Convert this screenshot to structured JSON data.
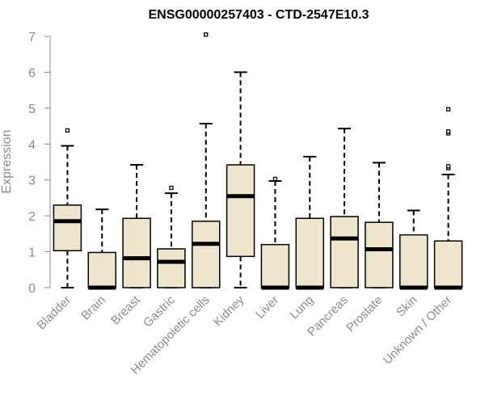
{
  "chart_data": {
    "type": "boxplot",
    "title": "ENSG00000257403 - CTD-2547E10.3",
    "xlabel": "",
    "ylabel": "Expression",
    "ylim": [
      0,
      7
    ],
    "yticks": [
      0,
      1,
      2,
      3,
      4,
      5,
      6,
      7
    ],
    "grid": false,
    "box_fill": "#ede6cd",
    "median_color": "#000000",
    "axis_color": "#8c8c8c",
    "categories": [
      "Bladder",
      "Brain",
      "Breast",
      "Gastric",
      "Hematopoietic cells",
      "Kidney",
      "Liver",
      "Lung",
      "Pancreas",
      "Prostate",
      "Skin",
      "Unknown / Other"
    ],
    "boxes": [
      {
        "category": "Bladder",
        "whisker_low": 0.0,
        "q1": 1.03,
        "median": 1.85,
        "q3": 2.3,
        "whisker_high": 3.95,
        "outliers": [
          4.38
        ]
      },
      {
        "category": "Brain",
        "whisker_low": 0.0,
        "q1": 0.0,
        "median": 0.0,
        "q3": 0.98,
        "whisker_high": 2.18,
        "outliers": []
      },
      {
        "category": "Breast",
        "whisker_low": 0.0,
        "q1": 0.0,
        "median": 0.82,
        "q3": 1.93,
        "whisker_high": 3.42,
        "outliers": []
      },
      {
        "category": "Gastric",
        "whisker_low": 0.0,
        "q1": 0.0,
        "median": 0.72,
        "q3": 1.08,
        "whisker_high": 2.63,
        "outliers": [
          2.78
        ]
      },
      {
        "category": "Hematopoietic cells",
        "whisker_low": 0.0,
        "q1": 0.0,
        "median": 1.22,
        "q3": 1.85,
        "whisker_high": 4.57,
        "outliers": [
          7.05
        ]
      },
      {
        "category": "Kidney",
        "whisker_low": 0.0,
        "q1": 0.87,
        "median": 2.55,
        "q3": 3.42,
        "whisker_high": 6.0,
        "outliers": []
      },
      {
        "category": "Liver",
        "whisker_low": 0.0,
        "q1": 0.0,
        "median": 0.0,
        "q3": 1.2,
        "whisker_high": 2.97,
        "outliers": [
          3.03
        ]
      },
      {
        "category": "Lung",
        "whisker_low": 0.0,
        "q1": 0.0,
        "median": 0.0,
        "q3": 1.93,
        "whisker_high": 3.65,
        "outliers": []
      },
      {
        "category": "Pancreas",
        "whisker_low": 0.0,
        "q1": 0.0,
        "median": 1.37,
        "q3": 1.98,
        "whisker_high": 4.43,
        "outliers": []
      },
      {
        "category": "Prostate",
        "whisker_low": 0.0,
        "q1": 0.0,
        "median": 1.07,
        "q3": 1.82,
        "whisker_high": 3.48,
        "outliers": []
      },
      {
        "category": "Skin",
        "whisker_low": 0.0,
        "q1": 0.0,
        "median": 0.0,
        "q3": 1.47,
        "whisker_high": 2.15,
        "outliers": []
      },
      {
        "category": "Unknown / Other",
        "whisker_low": 0.0,
        "q1": 0.0,
        "median": 0.0,
        "q3": 1.3,
        "whisker_high": 3.15,
        "outliers": [
          3.33,
          3.38,
          4.3,
          4.35,
          4.97
        ]
      }
    ]
  }
}
